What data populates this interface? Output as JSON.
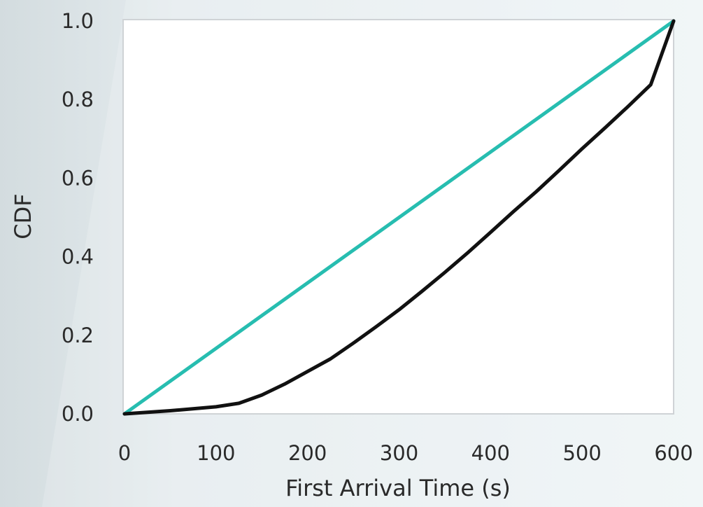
{
  "chart_data": {
    "type": "line",
    "xlabel": "First Arrival Time (s)",
    "ylabel": "CDF",
    "xlim": [
      0,
      600
    ],
    "ylim": [
      0,
      1.0
    ],
    "x_ticks": [
      "0",
      "100",
      "200",
      "300",
      "400",
      "500",
      "600"
    ],
    "y_ticks": [
      "0.0",
      "0.2",
      "0.4",
      "0.6",
      "0.8",
      "1.0"
    ],
    "grid": false,
    "legend": "none",
    "series": [
      {
        "color": "#27bdb0",
        "x": [
          0,
          600
        ],
        "y": [
          0,
          1.0
        ]
      },
      {
        "color": "#111111",
        "x": [
          0,
          50,
          100,
          125,
          150,
          175,
          200,
          225,
          250,
          275,
          300,
          325,
          350,
          375,
          400,
          425,
          450,
          475,
          500,
          525,
          550,
          575,
          600
        ],
        "y": [
          0,
          0.008,
          0.018,
          0.027,
          0.048,
          0.076,
          0.108,
          0.14,
          0.18,
          0.222,
          0.265,
          0.312,
          0.36,
          0.41,
          0.462,
          0.515,
          0.566,
          0.62,
          0.675,
          0.728,
          0.782,
          0.838,
          1.0
        ]
      }
    ]
  }
}
